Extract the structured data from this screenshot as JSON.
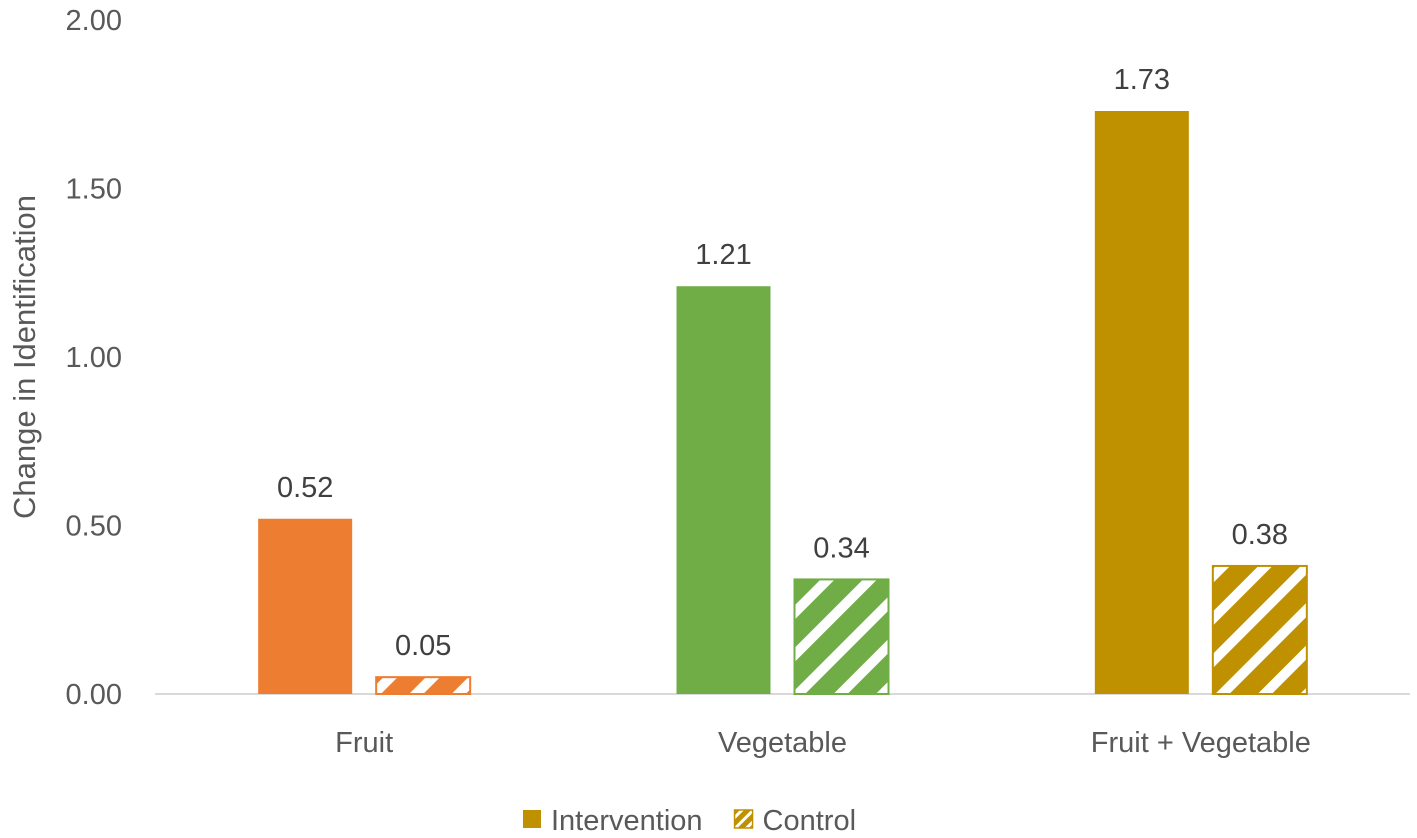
{
  "chart_data": {
    "type": "bar",
    "categories": [
      "Fruit",
      "Vegetable",
      "Fruit + Vegetable"
    ],
    "series": [
      {
        "name": "Intervention",
        "values": [
          0.52,
          1.21,
          1.73
        ],
        "pattern": "solid"
      },
      {
        "name": "Control",
        "values": [
          0.05,
          0.34,
          0.38
        ],
        "pattern": "diagonal-stripes"
      }
    ],
    "category_colors": [
      "#ED7D31",
      "#70AD47",
      "#BF9000"
    ],
    "legend_color": "#BF9000",
    "ylabel": "Change in Identification",
    "xlabel": "",
    "ylim": [
      0,
      2.0
    ],
    "yticks": [
      "0.00",
      "0.50",
      "1.00",
      "1.50",
      "2.00"
    ],
    "data_labels": [
      [
        "0.52",
        "1.21",
        "1.73"
      ],
      [
        "0.05",
        "0.34",
        "0.38"
      ]
    ],
    "grid": false,
    "legend_position": "bottom"
  }
}
